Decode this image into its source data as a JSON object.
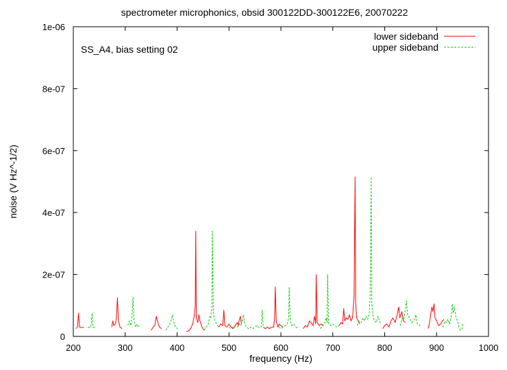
{
  "chart_data": {
    "type": "line",
    "title": "spectrometer microphonics, obsid 300122DD-300122E6, 20070222",
    "annotation": "SS_A4, bias setting 02",
    "xlabel": "frequency (Hz)",
    "ylabel": "noise (V Hz^-1/2)",
    "xlim": [
      200,
      1000
    ],
    "ylim": [
      0,
      1e-06
    ],
    "xticks": [
      200,
      300,
      400,
      500,
      600,
      700,
      800,
      900,
      1000
    ],
    "xtick_labels": [
      "200",
      "300",
      "400",
      "500",
      "600",
      "700",
      "800",
      "900",
      "1000"
    ],
    "yticks": [
      0,
      2e-07,
      4e-07,
      6e-07,
      8e-07,
      1e-06
    ],
    "ytick_labels": [
      "0",
      "2e-07",
      "4e-07",
      "6e-07",
      "8e-07",
      "1e-06"
    ],
    "grid": false,
    "legend_position": "top-right",
    "series": [
      {
        "name": "lower sideband",
        "color": "#ff0000",
        "dash": "solid",
        "points": [
          [
            205,
            2.5e-08
          ],
          [
            208,
            3e-08
          ],
          [
            210,
            7.5e-08
          ],
          [
            212,
            3e-08
          ],
          [
            216,
            2.8e-08
          ],
          [
            220,
            3e-08
          ],
          [
            230,
            null
          ],
          [
            274,
            3e-08
          ],
          [
            276,
            5e-08
          ],
          [
            278,
            3.5e-08
          ],
          [
            281,
            4e-08
          ],
          [
            283,
            6e-08
          ],
          [
            285,
            1.25e-07
          ],
          [
            287,
            5e-08
          ],
          [
            290,
            3e-08
          ],
          [
            294,
            2.5e-08
          ],
          [
            300,
            null
          ],
          [
            350,
            2e-08
          ],
          [
            354,
            3e-08
          ],
          [
            357,
            3.5e-08
          ],
          [
            360,
            6.5e-08
          ],
          [
            362,
            5e-08
          ],
          [
            366,
            3e-08
          ],
          [
            370,
            2.5e-08
          ],
          [
            375,
            null
          ],
          [
            418,
            1.5e-08
          ],
          [
            422,
            1.8e-08
          ],
          [
            426,
            2.5e-08
          ],
          [
            430,
            4e-08
          ],
          [
            433,
            6.5e-08
          ],
          [
            435,
            1e-07
          ],
          [
            436,
            3.4e-07
          ],
          [
            437,
            6e-08
          ],
          [
            440,
            4.5e-08
          ],
          [
            442,
            7e-08
          ],
          [
            444,
            5e-08
          ],
          [
            448,
            3e-08
          ],
          [
            452,
            2e-08
          ],
          [
            460,
            null
          ],
          [
            480,
            3e-08
          ],
          [
            484,
            4e-08
          ],
          [
            488,
            3.5e-08
          ],
          [
            490,
            8.5e-08
          ],
          [
            492,
            3.5e-08
          ],
          [
            496,
            3e-08
          ],
          [
            500,
            4e-08
          ],
          [
            504,
            3e-08
          ],
          [
            508,
            2.5e-08
          ],
          [
            512,
            3.5e-08
          ],
          [
            516,
            4.5e-08
          ],
          [
            518,
            3.5e-08
          ],
          [
            520,
            5.5e-08
          ],
          [
            522,
            6.5e-08
          ],
          [
            524,
            4e-08
          ],
          [
            530,
            null
          ],
          [
            566,
            3e-08
          ],
          [
            570,
            2.5e-08
          ],
          [
            574,
            3e-08
          ],
          [
            578,
            2.5e-08
          ],
          [
            582,
            3e-08
          ],
          [
            586,
            3e-08
          ],
          [
            588,
            6e-08
          ],
          [
            589,
            1.6e-07
          ],
          [
            591,
            5e-08
          ],
          [
            594,
            3e-08
          ],
          [
            597,
            4e-08
          ],
          [
            600,
            3.5e-08
          ],
          [
            604,
            3e-08
          ],
          [
            620,
            null
          ],
          [
            643,
            2.5e-08
          ],
          [
            647,
            3.5e-08
          ],
          [
            651,
            3e-08
          ],
          [
            655,
            5e-08
          ],
          [
            658,
            4.5e-08
          ],
          [
            662,
            3.5e-08
          ],
          [
            665,
            6.5e-08
          ],
          [
            667,
            4e-08
          ],
          [
            668,
            2e-07
          ],
          [
            670,
            4.5e-08
          ],
          [
            674,
            3.5e-08
          ],
          [
            678,
            4e-08
          ],
          [
            682,
            3.5e-08
          ],
          [
            690,
            null
          ],
          [
            712,
            3.5e-08
          ],
          [
            716,
            4.5e-08
          ],
          [
            719,
            4e-08
          ],
          [
            721,
            9e-08
          ],
          [
            723,
            5e-08
          ],
          [
            726,
            6e-08
          ],
          [
            729,
            5.5e-08
          ],
          [
            732,
            7e-08
          ],
          [
            735,
            5e-08
          ],
          [
            738,
            6e-08
          ],
          [
            741,
            1.3e-07
          ],
          [
            743,
            5.15e-07
          ],
          [
            744,
            1.1e-07
          ],
          [
            746,
            6e-08
          ],
          [
            749,
            5e-08
          ],
          [
            752,
            4e-08
          ],
          [
            760,
            null
          ],
          [
            796,
            2.5e-08
          ],
          [
            800,
            3.5e-08
          ],
          [
            804,
            4e-08
          ],
          [
            808,
            3e-08
          ],
          [
            812,
            5e-08
          ],
          [
            816,
            6e-08
          ],
          [
            820,
            4.5e-08
          ],
          [
            824,
            7e-08
          ],
          [
            827,
            9.5e-08
          ],
          [
            829,
            6e-08
          ],
          [
            833,
            8e-08
          ],
          [
            836,
            5e-08
          ],
          [
            840,
            4.5e-08
          ],
          [
            850,
            null
          ],
          [
            884,
            2.5e-08
          ],
          [
            887,
            5e-08
          ],
          [
            889,
            7.5e-08
          ],
          [
            891,
            9.5e-08
          ],
          [
            893,
            8e-08
          ],
          [
            895,
            1.05e-07
          ],
          [
            897,
            6e-08
          ],
          [
            900,
            5e-08
          ],
          [
            904,
            3.5e-08
          ],
          [
            908,
            4e-08
          ],
          [
            911,
            5e-08
          ],
          [
            914,
            5.5e-08
          ]
        ]
      },
      {
        "name": "upper sideband",
        "color": "#00cc00",
        "dash": "dashed",
        "points": [
          [
            228,
            3e-08
          ],
          [
            232,
            2.8e-08
          ],
          [
            234,
            3.5e-08
          ],
          [
            236,
            7.5e-08
          ],
          [
            238,
            3e-08
          ],
          [
            242,
            2.8e-08
          ],
          [
            250,
            null
          ],
          [
            305,
            3.5e-08
          ],
          [
            308,
            5e-08
          ],
          [
            311,
            3.5e-08
          ],
          [
            313,
            6e-08
          ],
          [
            315,
            1.25e-07
          ],
          [
            317,
            5e-08
          ],
          [
            320,
            3e-08
          ],
          [
            323,
            4e-08
          ],
          [
            326,
            3e-08
          ],
          [
            330,
            null
          ],
          [
            378,
            2e-08
          ],
          [
            382,
            3e-08
          ],
          [
            386,
            4e-08
          ],
          [
            389,
            5.5e-08
          ],
          [
            391,
            7e-08
          ],
          [
            393,
            5e-08
          ],
          [
            397,
            3e-08
          ],
          [
            401,
            2.5e-08
          ],
          [
            410,
            null
          ],
          [
            452,
            2e-08
          ],
          [
            456,
            3e-08
          ],
          [
            460,
            4e-08
          ],
          [
            463,
            6.5e-08
          ],
          [
            465,
            6e-08
          ],
          [
            467,
            1e-07
          ],
          [
            468,
            3.4e-07
          ],
          [
            470,
            7e-08
          ],
          [
            473,
            5e-08
          ],
          [
            476,
            4e-08
          ],
          [
            480,
            3e-08
          ],
          [
            485,
            null
          ],
          [
            500,
            3e-08
          ],
          [
            504,
            2.5e-08
          ],
          [
            508,
            3e-08
          ],
          [
            512,
            3.5e-08
          ],
          [
            516,
            3e-08
          ],
          [
            520,
            4e-08
          ],
          [
            523,
            3.5e-08
          ],
          [
            526,
            5.5e-08
          ],
          [
            528,
            7e-08
          ],
          [
            530,
            4e-08
          ],
          [
            534,
            3e-08
          ],
          [
            538,
            2.5e-08
          ],
          [
            542,
            3e-08
          ],
          [
            546,
            2.5e-08
          ],
          [
            550,
            3e-08
          ],
          [
            554,
            3.5e-08
          ],
          [
            558,
            2.8e-08
          ],
          [
            562,
            3e-08
          ],
          [
            564,
            8.5e-08
          ],
          [
            566,
            3e-08
          ],
          [
            570,
            null
          ],
          [
            596,
            3e-08
          ],
          [
            600,
            2.5e-08
          ],
          [
            604,
            3e-08
          ],
          [
            608,
            3.5e-08
          ],
          [
            612,
            4e-08
          ],
          [
            615,
            6e-08
          ],
          [
            616,
            1.6e-07
          ],
          [
            618,
            5e-08
          ],
          [
            621,
            3.5e-08
          ],
          [
            625,
            4e-08
          ],
          [
            629,
            3e-08
          ],
          [
            633,
            2.5e-08
          ],
          [
            650,
            null
          ],
          [
            676,
            2.5e-08
          ],
          [
            680,
            3.5e-08
          ],
          [
            684,
            4e-08
          ],
          [
            687,
            6e-08
          ],
          [
            689,
            4.5e-08
          ],
          [
            690,
            2e-07
          ],
          [
            692,
            4e-08
          ],
          [
            696,
            3.5e-08
          ],
          [
            700,
            4e-08
          ],
          [
            704,
            3.5e-08
          ],
          [
            708,
            3e-08
          ],
          [
            712,
            3.5e-08
          ],
          [
            720,
            null
          ],
          [
            747,
            3.5e-08
          ],
          [
            751,
            5e-08
          ],
          [
            755,
            4.5e-08
          ],
          [
            758,
            6e-08
          ],
          [
            761,
            5e-08
          ],
          [
            764,
            6.5e-08
          ],
          [
            767,
            5.5e-08
          ],
          [
            770,
            7e-08
          ],
          [
            772,
            1.3e-07
          ],
          [
            774,
            5.15e-07
          ],
          [
            775,
            1.1e-07
          ],
          [
            778,
            6e-08
          ],
          [
            781,
            5e-08
          ],
          [
            784,
            4.5e-08
          ],
          [
            787,
            6.5e-08
          ],
          [
            790,
            5e-08
          ],
          [
            793,
            4e-08
          ],
          [
            800,
            null
          ],
          [
            830,
            3.5e-08
          ],
          [
            834,
            6e-08
          ],
          [
            837,
            5.5e-08
          ],
          [
            840,
            9e-08
          ],
          [
            842,
            1.15e-07
          ],
          [
            844,
            7e-08
          ],
          [
            848,
            6e-08
          ],
          [
            852,
            4.5e-08
          ],
          [
            856,
            5e-08
          ],
          [
            860,
            7e-08
          ],
          [
            863,
            4e-08
          ],
          [
            867,
            3.5e-08
          ],
          [
            870,
            4e-08
          ],
          [
            875,
            null
          ],
          [
            912,
            3e-08
          ],
          [
            916,
            5e-08
          ],
          [
            919,
            4.5e-08
          ],
          [
            922,
            5.5e-08
          ],
          [
            925,
            4e-08
          ],
          [
            928,
            6e-08
          ],
          [
            930,
            1.05e-07
          ],
          [
            932,
            7.5e-08
          ],
          [
            934,
            9.5e-08
          ],
          [
            937,
            6.5e-08
          ],
          [
            940,
            5e-08
          ],
          [
            943,
            3e-08
          ],
          [
            946,
            2e-08
          ],
          [
            949,
            2.5e-08
          ],
          [
            951,
            4e-08
          ]
        ]
      }
    ]
  }
}
